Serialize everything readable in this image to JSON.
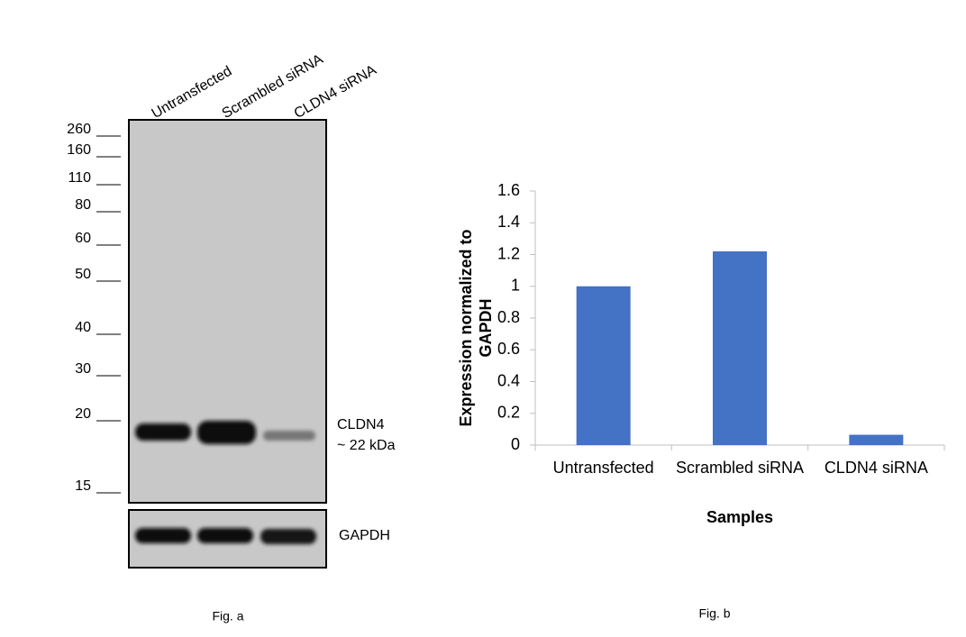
{
  "blot": {
    "lanes": [
      "Untransfected",
      "Scrambled siRNA",
      "CLDN4 siRNA"
    ],
    "markers": [
      "260",
      "160",
      "110",
      "80",
      "60",
      "50",
      "40",
      "30",
      "20",
      "15"
    ],
    "band_label": "CLDN4",
    "band_size": "~ 22 kDa",
    "loading_label": "GAPDH",
    "caption": "Fig. a"
  },
  "chart_data": {
    "type": "bar",
    "ylabel": "Expression normalized to GAPDH",
    "xlabel": "Samples",
    "caption": "Fig. b",
    "categories": [
      "Untransfected",
      "Scrambled siRNA",
      "CLDN4 siRNA"
    ],
    "values": [
      1.0,
      1.22,
      0.065
    ],
    "color": "#4472c4",
    "ylim": [
      0,
      1.6
    ],
    "yticks": [
      0,
      0.2,
      0.4,
      0.6,
      0.8,
      1,
      1.2,
      1.4,
      1.6
    ]
  }
}
